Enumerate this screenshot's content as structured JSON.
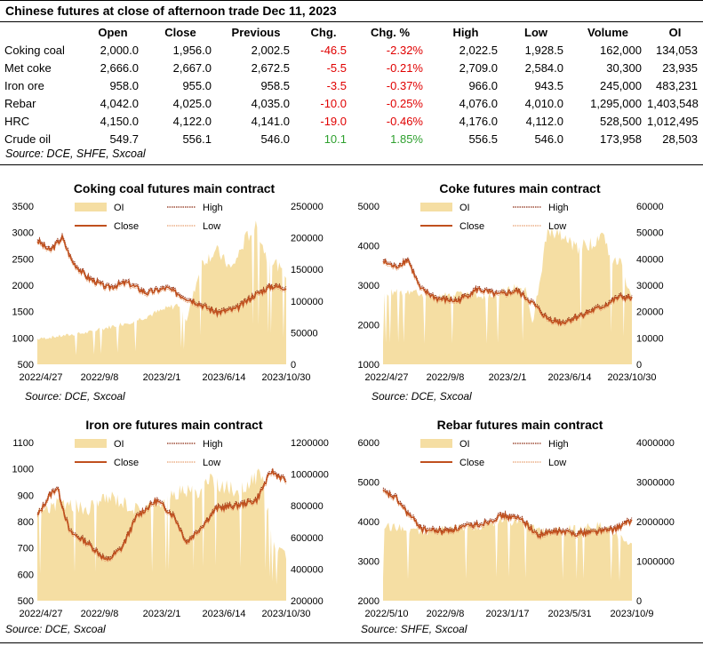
{
  "header": {
    "title": "Chinese futures at close of afternoon trade Dec 11, 2023",
    "columns": [
      "",
      "Open",
      "Close",
      "Previous",
      "Chg.",
      "Chg. %",
      "High",
      "Low",
      "Volume",
      "OI"
    ]
  },
  "rows": [
    {
      "name": "Coking coal",
      "open": "2,000.0",
      "close": "1,956.0",
      "previous": "2,002.5",
      "chg": "-46.5",
      "chg_pct": "-2.32%",
      "high": "2,022.5",
      "low": "1,928.5",
      "volume": "162,000",
      "oi": "134,053"
    },
    {
      "name": "Met coke",
      "open": "2,666.0",
      "close": "2,667.0",
      "previous": "2,672.5",
      "chg": "-5.5",
      "chg_pct": "-0.21%",
      "high": "2,709.0",
      "low": "2,584.0",
      "volume": "30,300",
      "oi": "23,935"
    },
    {
      "name": "Iron ore",
      "open": "958.0",
      "close": "955.0",
      "previous": "958.5",
      "chg": "-3.5",
      "chg_pct": "-0.37%",
      "high": "966.0",
      "low": "943.5",
      "volume": "245,000",
      "oi": "483,231"
    },
    {
      "name": "Rebar",
      "open": "4,042.0",
      "close": "4,025.0",
      "previous": "4,035.0",
      "chg": "-10.0",
      "chg_pct": "-0.25%",
      "high": "4,076.0",
      "low": "4,010.0",
      "volume": "1,295,000",
      "oi": "1,403,548"
    },
    {
      "name": "HRC",
      "open": "4,150.0",
      "close": "4,122.0",
      "previous": "4,141.0",
      "chg": "-19.0",
      "chg_pct": "-0.46%",
      "high": "4,176.0",
      "low": "4,112.0",
      "volume": "528,500",
      "oi": "1,012,495"
    },
    {
      "name": "Crude oil",
      "open": "549.7",
      "close": "556.1",
      "previous": "546.0",
      "chg": "10.1",
      "chg_pct": "1.85%",
      "high": "556.5",
      "low": "546.0",
      "volume": "173,958",
      "oi": "28,503"
    }
  ],
  "source_main": "Source: DCE, SHFE, Sxcoal",
  "colors": {
    "oi_fill": "#f5dea3",
    "close_line": "#c0501e",
    "high_line": "#8b2a10",
    "low_line": "#e8a070",
    "negative": "#e00000",
    "positive": "#2ea02e"
  },
  "chart_data": [
    {
      "type": "line",
      "title": "Coking coal futures main contract",
      "legend": [
        "OI",
        "High",
        "Close",
        "Low"
      ],
      "x_ticks": [
        "2022/4/27",
        "2022/9/8",
        "2023/2/1",
        "2023/6/14",
        "2023/10/30"
      ],
      "ylim_left": [
        500,
        3500
      ],
      "yticks_left": [
        500,
        1000,
        1500,
        2000,
        2500,
        3000,
        3500
      ],
      "ylim_right": [
        0,
        250000
      ],
      "yticks_right": [
        0,
        50000,
        100000,
        150000,
        200000,
        250000
      ],
      "close_points": [
        [
          0,
          2850
        ],
        [
          0.05,
          2650
        ],
        [
          0.1,
          2900
        ],
        [
          0.14,
          2450
        ],
        [
          0.2,
          2150
        ],
        [
          0.28,
          1950
        ],
        [
          0.36,
          2050
        ],
        [
          0.44,
          1850
        ],
        [
          0.52,
          1950
        ],
        [
          0.58,
          1800
        ],
        [
          0.65,
          1650
        ],
        [
          0.72,
          1480
        ],
        [
          0.8,
          1550
        ],
        [
          0.87,
          1800
        ],
        [
          0.94,
          1980
        ],
        [
          1,
          1956
        ]
      ],
      "oi_points": [
        [
          0,
          40000
        ],
        [
          0.1,
          45000
        ],
        [
          0.2,
          50000
        ],
        [
          0.3,
          60000
        ],
        [
          0.4,
          70000
        ],
        [
          0.5,
          85000
        ],
        [
          0.57,
          95000
        ],
        [
          0.6,
          70000
        ],
        [
          0.66,
          160000
        ],
        [
          0.72,
          180000
        ],
        [
          0.78,
          150000
        ],
        [
          0.84,
          200000
        ],
        [
          0.88,
          220000
        ],
        [
          0.92,
          170000
        ],
        [
          0.96,
          160000
        ],
        [
          1,
          134053
        ]
      ],
      "source": "Source: DCE, Sxcoal"
    },
    {
      "type": "line",
      "title": "Coke futures main contract",
      "legend": [
        "OI",
        "High",
        "Close",
        "Low"
      ],
      "x_ticks": [
        "2022/4/27",
        "2022/9/8",
        "2023/2/1",
        "2023/6/14",
        "2023/10/30"
      ],
      "ylim_left": [
        1000,
        5000
      ],
      "yticks_left": [
        1000,
        2000,
        3000,
        4000,
        5000
      ],
      "ylim_right": [
        0,
        60000
      ],
      "yticks_right": [
        0,
        10000,
        20000,
        30000,
        40000,
        50000,
        60000
      ],
      "close_points": [
        [
          0,
          3600
        ],
        [
          0.05,
          3450
        ],
        [
          0.1,
          3650
        ],
        [
          0.15,
          2900
        ],
        [
          0.22,
          2650
        ],
        [
          0.3,
          2600
        ],
        [
          0.38,
          2900
        ],
        [
          0.46,
          2750
        ],
        [
          0.54,
          2850
        ],
        [
          0.6,
          2550
        ],
        [
          0.66,
          2150
        ],
        [
          0.72,
          2050
        ],
        [
          0.8,
          2250
        ],
        [
          0.88,
          2450
        ],
        [
          0.95,
          2700
        ],
        [
          1,
          2667
        ]
      ],
      "oi_points": [
        [
          0,
          27000
        ],
        [
          0.1,
          28000
        ],
        [
          0.2,
          25000
        ],
        [
          0.3,
          27000
        ],
        [
          0.4,
          26000
        ],
        [
          0.5,
          28000
        ],
        [
          0.57,
          30000
        ],
        [
          0.6,
          15000
        ],
        [
          0.66,
          50000
        ],
        [
          0.72,
          48000
        ],
        [
          0.78,
          44000
        ],
        [
          0.84,
          46000
        ],
        [
          0.88,
          50000
        ],
        [
          0.92,
          40000
        ],
        [
          0.96,
          38000
        ],
        [
          1,
          23935
        ]
      ],
      "source": "Source: DCE, Sxcoal"
    },
    {
      "type": "line",
      "title": "Iron ore futures main contract",
      "legend": [
        "OI",
        "High",
        "Close",
        "Low"
      ],
      "x_ticks": [
        "2022/4/27",
        "2022/9/8",
        "2023/2/1",
        "2023/6/14",
        "2023/10/30"
      ],
      "ylim_left": [
        500,
        1100
      ],
      "yticks_left": [
        500,
        600,
        700,
        800,
        900,
        1000,
        1100
      ],
      "ylim_right": [
        200000,
        1200000
      ],
      "yticks_right": [
        200000,
        400000,
        600000,
        800000,
        1000000,
        1200000
      ],
      "close_points": [
        [
          0,
          820
        ],
        [
          0.05,
          900
        ],
        [
          0.08,
          930
        ],
        [
          0.13,
          760
        ],
        [
          0.2,
          720
        ],
        [
          0.28,
          650
        ],
        [
          0.34,
          700
        ],
        [
          0.4,
          820
        ],
        [
          0.48,
          880
        ],
        [
          0.55,
          820
        ],
        [
          0.6,
          720
        ],
        [
          0.66,
          780
        ],
        [
          0.72,
          850
        ],
        [
          0.8,
          860
        ],
        [
          0.88,
          880
        ],
        [
          0.94,
          990
        ],
        [
          1,
          955
        ]
      ],
      "oi_points": [
        [
          0,
          760000
        ],
        [
          0.1,
          820000
        ],
        [
          0.2,
          780000
        ],
        [
          0.3,
          860000
        ],
        [
          0.4,
          780000
        ],
        [
          0.5,
          820000
        ],
        [
          0.58,
          900000
        ],
        [
          0.64,
          880000
        ],
        [
          0.7,
          960000
        ],
        [
          0.78,
          900000
        ],
        [
          0.84,
          920000
        ],
        [
          0.9,
          1000000
        ],
        [
          0.95,
          560000
        ],
        [
          1,
          483231
        ]
      ],
      "source": "Source: DCE, Sxcoal"
    },
    {
      "type": "line",
      "title": "Rebar futures main contract",
      "legend": [
        "OI",
        "High",
        "Close",
        "Low"
      ],
      "x_ticks": [
        "2022/5/10",
        "2022/9/8",
        "2023/1/17",
        "2023/5/31",
        "2023/10/9"
      ],
      "ylim_left": [
        2000,
        6000
      ],
      "yticks_left": [
        2000,
        3000,
        4000,
        5000,
        6000
      ],
      "ylim_right": [
        0,
        4000000
      ],
      "yticks_right": [
        0,
        1000000,
        2000000,
        3000000,
        4000000
      ],
      "close_points": [
        [
          0,
          4750
        ],
        [
          0.05,
          4600
        ],
        [
          0.1,
          4200
        ],
        [
          0.16,
          3800
        ],
        [
          0.24,
          3750
        ],
        [
          0.32,
          3850
        ],
        [
          0.4,
          3950
        ],
        [
          0.48,
          4150
        ],
        [
          0.56,
          4050
        ],
        [
          0.62,
          3650
        ],
        [
          0.7,
          3750
        ],
        [
          0.78,
          3700
        ],
        [
          0.86,
          3750
        ],
        [
          0.93,
          3800
        ],
        [
          1,
          4025
        ]
      ],
      "oi_points": [
        [
          0,
          1900000
        ],
        [
          0.1,
          1800000
        ],
        [
          0.2,
          1750000
        ],
        [
          0.3,
          1850000
        ],
        [
          0.4,
          1900000
        ],
        [
          0.48,
          2050000
        ],
        [
          0.56,
          1950000
        ],
        [
          0.64,
          1750000
        ],
        [
          0.72,
          1800000
        ],
        [
          0.8,
          1850000
        ],
        [
          0.88,
          1900000
        ],
        [
          0.95,
          1600000
        ],
        [
          1,
          1403548
        ]
      ],
      "source": "Source: SHFE, Sxcoal"
    }
  ]
}
